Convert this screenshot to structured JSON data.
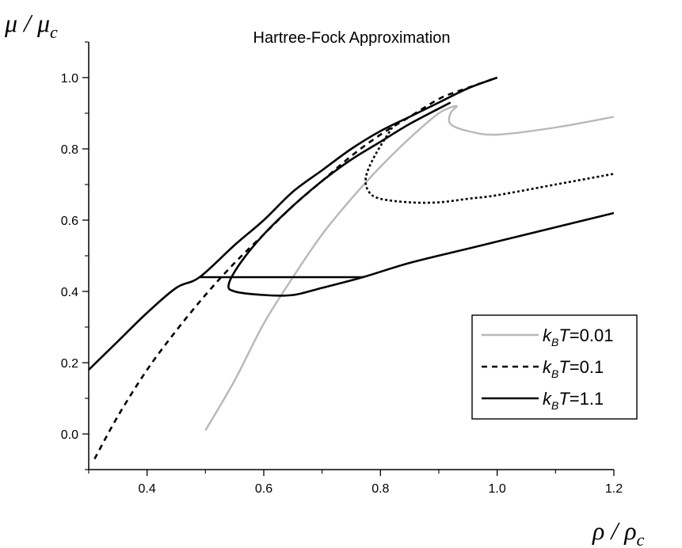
{
  "chart_data": {
    "type": "line",
    "title": "Hartree-Fock Approximation",
    "xlabel": {
      "main": "ρ",
      "sep": " / ",
      "sym": "ρ",
      "sub": "c"
    },
    "ylabel": {
      "main": "μ",
      "sep": " / ",
      "sym": "μ",
      "sub": "c"
    },
    "xlim": [
      0.3,
      1.2
    ],
    "ylim": [
      -0.1,
      1.1
    ],
    "xticks": [
      "0.4",
      "0.6",
      "0.8",
      "1.0",
      "1.2"
    ],
    "yticks": [
      "0.0",
      "0.2",
      "0.4",
      "0.6",
      "0.8",
      "1.0"
    ],
    "legend_position": "lower-right",
    "series": [
      {
        "name": "k_BT=0.01",
        "legend": {
          "k": "k",
          "sub": "B",
          "t": "T",
          "rest": "=0.01"
        },
        "color": "#b8b8b8",
        "dash": "none",
        "x": [
          0.5,
          0.55,
          0.6,
          0.65,
          0.7,
          0.75,
          0.8,
          0.85,
          0.9,
          0.93,
          0.92,
          0.92,
          0.95,
          1.0,
          1.1,
          1.2
        ],
        "y": [
          0.01,
          0.15,
          0.31,
          0.44,
          0.56,
          0.66,
          0.75,
          0.83,
          0.9,
          0.92,
          0.9,
          0.87,
          0.85,
          0.84,
          0.86,
          0.89
        ]
      },
      {
        "name": "k_BT=0.1",
        "legend": {
          "k": "k",
          "sub": "B",
          "t": "T",
          "rest": "=0.1"
        },
        "color": "#000000",
        "dash": "7,6",
        "x": [
          0.31,
          0.35,
          0.4,
          0.45,
          0.5,
          0.55,
          0.6,
          0.65,
          0.7,
          0.75,
          0.8,
          0.85,
          0.9,
          0.93,
          1.0
        ],
        "y": [
          -0.07,
          0.05,
          0.18,
          0.29,
          0.39,
          0.48,
          0.56,
          0.64,
          0.71,
          0.78,
          0.84,
          0.89,
          0.94,
          0.96,
          1.0
        ]
      },
      {
        "name": "k_BT=0.1 (coexistence branch)",
        "legend": null,
        "color": "#000000",
        "dash": "3,3",
        "x": [
          0.82,
          0.79,
          0.775,
          0.78,
          0.8,
          0.85,
          0.9,
          0.95,
          1.0,
          1.1,
          1.2
        ],
        "y": [
          0.86,
          0.78,
          0.72,
          0.68,
          0.66,
          0.65,
          0.65,
          0.66,
          0.67,
          0.7,
          0.73
        ]
      },
      {
        "name": "k_BT=1.1",
        "legend": {
          "k": "k",
          "sub": "B",
          "t": "T",
          "rest": "=1.1"
        },
        "color": "#000000",
        "dash": "none",
        "x": [
          0.3,
          0.35,
          0.4,
          0.45,
          0.49,
          0.55,
          0.6,
          0.65,
          0.7,
          0.75,
          0.8,
          0.85,
          0.9,
          0.95,
          1.0
        ],
        "y": [
          0.18,
          0.26,
          0.34,
          0.41,
          0.44,
          0.53,
          0.6,
          0.68,
          0.74,
          0.8,
          0.85,
          0.89,
          0.93,
          0.97,
          1.0
        ]
      },
      {
        "name": "k_BT=1.1 (loop)",
        "legend": null,
        "color": "#000000",
        "dash": "none",
        "x": [
          0.92,
          0.85,
          0.8,
          0.75,
          0.7,
          0.65,
          0.6,
          0.56,
          0.54,
          0.55,
          0.6,
          0.65,
          0.7,
          0.77,
          0.85,
          0.95,
          1.05,
          1.2
        ],
        "y": [
          0.93,
          0.87,
          0.82,
          0.77,
          0.71,
          0.64,
          0.56,
          0.48,
          0.42,
          0.4,
          0.39,
          0.39,
          0.41,
          0.44,
          0.48,
          0.52,
          0.56,
          0.62
        ]
      },
      {
        "name": "k_BT=1.1 (Maxwell line)",
        "legend": null,
        "color": "#000000",
        "dash": "none",
        "x": [
          0.49,
          0.77
        ],
        "y": [
          0.44,
          0.44
        ]
      }
    ]
  }
}
